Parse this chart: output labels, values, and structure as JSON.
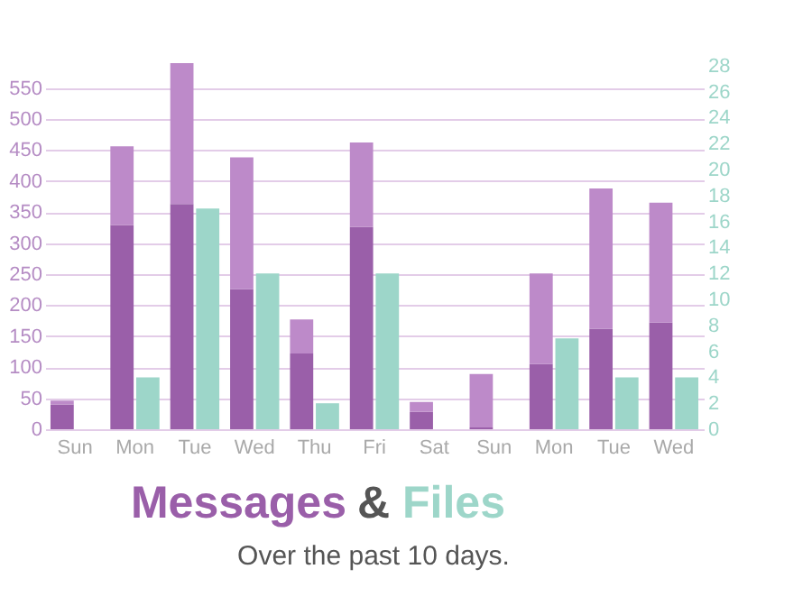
{
  "chart_data": {
    "type": "bar",
    "title": "Messages & Files",
    "subtitle": "Over the past 10 days.",
    "categories": [
      "Sun",
      "Mon",
      "Tue",
      "Wed",
      "Thu",
      "Fri",
      "Sat",
      "Sun",
      "Mon",
      "Tue",
      "Wed"
    ],
    "stacked": true,
    "series": [
      {
        "color": "#9a5fa9",
        "values": [
          40,
          329,
          363,
          226,
          122,
          326,
          28,
          3,
          105,
          162,
          172
        ]
      },
      {
        "color": "#bd8ac9",
        "values": [
          6,
          127,
          227,
          212,
          55,
          136,
          16,
          86,
          146,
          226,
          193
        ]
      },
      {
        "color": "#9dd6c9",
        "axis": "y2",
        "values": [
          0,
          4,
          17,
          12,
          2,
          12,
          0,
          0,
          7,
          4,
          4
        ]
      }
    ],
    "ylim": [
      0,
      590
    ],
    "yticks": [
      0,
      50,
      100,
      150,
      200,
      250,
      300,
      350,
      400,
      450,
      500,
      550
    ],
    "y2lim": [
      0,
      28.2
    ],
    "y2ticks": [
      0,
      2,
      4,
      6,
      8,
      10,
      12,
      14,
      16,
      18,
      20,
      22,
      24,
      26,
      28
    ],
    "grid": "y"
  }
}
